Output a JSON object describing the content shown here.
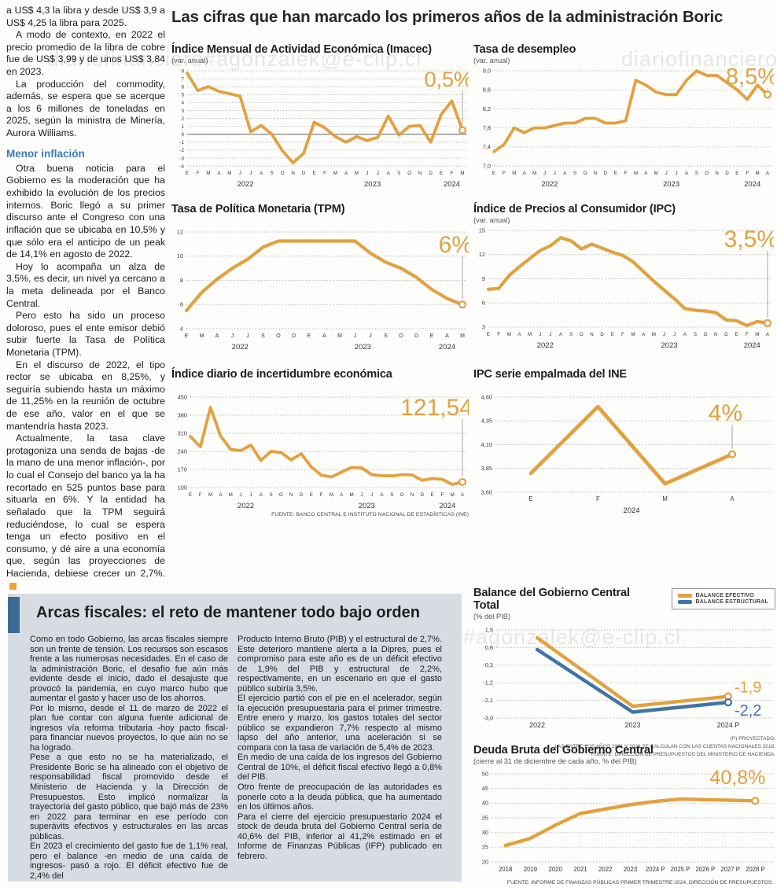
{
  "watermark": "diariofinanciero#agonzalek@e-clip.cl",
  "main_title": "Las cifras que han marcado los primeros años de la administración Boric",
  "left_column": {
    "paragraphs_before": [
      "a US$ 4,3 la libra y desde US$ 3,9 a US$ 4,25 la libra para 2025.",
      "A modo de contexto, en 2022 el precio promedio de la libra de cobre fue de US$ 3,99 y de unos US$ 3,84 en 2023.",
      "La producción del commodity, además, se espera que se acerque a los 6 millones de toneladas en 2025, según la ministra de Minería, Aurora Williams."
    ],
    "subhead": "Menor inflación",
    "paragraphs_after": [
      "Otra buena noticia para el Gobierno es la moderación que ha exhibido la evolución de los precios internos. Boric llegó a su primer discurso ante el Congreso con una inflación que se ubicaba en 10,5% y que sólo era el anticipo de un peak de 14,1% en agosto de 2022.",
      "Hoy lo acompaña un alza de 3,5%, es decir, un nivel ya cercano a la meta delineada por el Banco Central.",
      "Pero esto ha sido un proceso doloroso, pues el ente emisor debió subir fuerte la Tasa de Política Monetaria (TPM).",
      "En el discurso de 2022, el tipo rector se ubicaba en 8,25%, y seguiría subiendo hasta un máximo de 11,25% en la reunión de octubre de ese año, valor en el que se mantendría hasta 2023.",
      "Actualmente, la tasa clave protagoniza una senda de bajas -de la mano de una menor inflación-, por lo cual el Consejo del banco ya la ha recortado en 525 puntos base para situarla en 6%. Y la entidad ha señalado que la TPM seguirá reduciéndose, lo cual se espera tenga un efecto positivo en el consumo, y dé aire a una economía que, según las proyecciones de Hacienda, debiese crecer un 2,7%."
    ]
  },
  "bottom_box": {
    "title": "Arcas fiscales: el reto de mantener todo bajo orden",
    "col1": [
      "Como en todo Gobierno, las arcas fiscales siempre son un frente de tensión. Los recursos son escasos frente a las numerosas necesidades. En el caso de la administración Boric, el desafío fue aún más evidente desde el inicio, dado el desajuste que provocó la pandemia, en cuyo marco hubo que aumentar el gasto y hacer uso de los ahorros.",
      "Por lo mismo, desde el 11 de marzo de 2022 el plan fue contar con alguna fuente adicional de ingresos vía reforma tributaria -hoy pacto fiscal- para financiar nuevos proyectos, lo que aún no se ha logrado.",
      "Pese a que esto no se ha materializado, el Presidente Boric se ha alineado con el objetivo de responsabilidad fiscal promovido desde el Ministerio de Hacienda y la Dirección de Presupuestos. Esto implicó normalizar la trayectoria del gasto público, que bajó más de 23% en 2022 para terminar en ese período con superávits efectivos y estructurales en las arcas públicas.",
      "En 2023 el crecimiento del gasto fue de 1,1% real, pero el balance -en medio de una caída de ingresos-  pasó a rojo. El déficit efectivo fue de 2,4% del"
    ],
    "col2": [
      "Producto Interno Bruto (PIB) y el estructural de 2,7%. Este deterioro mantiene alerta a la Dipres, pues el compromiso para este año es de un déficit efectivo de 1,9% del PIB y estructural de 2,2%, respectivamente, en un escenario en que el gasto público subiría 3,5%.",
      "El ejercicio partió con el pie en el acelerador, según la ejecución presupuestaria para el primer trimestre. Entre enero y marzo, los gastos totales del sector público se expandieron 7,7% respecto al mismo lapso del año anterior, una aceleración si se compara con la tasa de variación de 5,4% de 2023.",
      "En medio de una caída de los ingresos del Gobierno Central de 10%, el déficit fiscal efectivo llegó a 0,8% del PIB.",
      "Otro frente de preocupación de las autoridades es ponerle coto a la deuda pública, que ha aumentado en los últimos años.",
      "Para el cierre del ejercicio presupuestario 2024 el stock de deuda bruta del Gobierno Central sería de 40,6% del PIB, inferior al 41,2% estimado en el Informe de Finanzas Públicas (IFP) publicado en febrero."
    ]
  },
  "colors": {
    "orange": "#e2a13f",
    "blue": "#3f74a6",
    "accent_bar_blue": "#3d6a92",
    "subhead_blue": "#3d7ab8",
    "gray_box_bg": "#d7dce2"
  },
  "chart_data": [
    {
      "id": "imacec",
      "type": "line",
      "title": "Índice Mensual de Actividad Económica (Imacec)",
      "subtitle": "(var. anual)",
      "x_labels": [
        "E",
        "F",
        "M",
        "A",
        "M",
        "J",
        "J",
        "A",
        "S",
        "O",
        "N",
        "D",
        "E",
        "F",
        "M",
        "A",
        "M",
        "J",
        "J",
        "A",
        "S",
        "O",
        "N",
        "D",
        "E",
        "F",
        "M"
      ],
      "year_groups": [
        {
          "label": "2022",
          "from": 0,
          "to": 11
        },
        {
          "label": "2023",
          "from": 12,
          "to": 23
        },
        {
          "label": "2024",
          "from": 24,
          "to": 26
        }
      ],
      "series": [
        {
          "name": "Imacec",
          "color": "#e2a13f",
          "values": [
            7.7,
            5.5,
            6.0,
            5.4,
            5.1,
            4.8,
            0.3,
            1.1,
            0.0,
            -2.1,
            -3.6,
            -2.4,
            1.5,
            0.8,
            -0.3,
            -1.0,
            -0.3,
            -0.8,
            -0.4,
            2.3,
            -0.1,
            1.0,
            1.1,
            -1.0,
            2.5,
            4.2,
            0.5
          ]
        }
      ],
      "ylim": [
        -4,
        8
      ],
      "ytick_vals": [
        8,
        7,
        6,
        5,
        4,
        3,
        2,
        1,
        0,
        -1,
        -2,
        -3,
        -4
      ],
      "ytick_labels": [
        "8",
        "7",
        "6",
        "5",
        "4",
        "3",
        "2",
        "1",
        "0",
        "-1",
        "-2",
        "-3",
        "-4"
      ],
      "zero_line": true,
      "value_label": "0,5%"
    },
    {
      "id": "desempleo",
      "type": "line",
      "title": "Tasa de desempleo",
      "subtitle": "(var. anual)",
      "x_labels": [
        "E",
        "F",
        "M",
        "A",
        "M",
        "J",
        "J",
        "A",
        "S",
        "O",
        "N",
        "D",
        "E",
        "F",
        "M",
        "A",
        "M",
        "J",
        "J",
        "A",
        "S",
        "O",
        "N",
        "D",
        "E",
        "F",
        "M",
        "A"
      ],
      "year_groups": [
        {
          "label": "2022",
          "from": 0,
          "to": 11
        },
        {
          "label": "2023",
          "from": 12,
          "to": 23
        },
        {
          "label": "2024",
          "from": 24,
          "to": 27
        }
      ],
      "series": [
        {
          "name": "Tasa de desempleo",
          "color": "#e2a13f",
          "values": [
            7.3,
            7.45,
            7.8,
            7.7,
            7.8,
            7.8,
            7.85,
            7.9,
            7.9,
            8.0,
            8.0,
            7.9,
            7.9,
            7.95,
            8.8,
            8.7,
            8.55,
            8.5,
            8.5,
            8.8,
            9.0,
            8.9,
            8.9,
            8.75,
            8.6,
            8.4,
            8.7,
            8.5
          ]
        }
      ],
      "ylim": [
        7.0,
        9.0
      ],
      "ytick_vals": [
        9.0,
        8.6,
        8.2,
        7.8,
        7.4,
        7.0
      ],
      "ytick_labels": [
        "9,0",
        "8,6",
        "8,2",
        "7,8",
        "7,4",
        "7,0"
      ],
      "value_label": "8,5%"
    },
    {
      "id": "tpm",
      "type": "line",
      "title": "Tasa de Política Monetaria (TPM)",
      "subtitle": "",
      "x_labels": [
        "E",
        "M",
        "A",
        "J",
        "J",
        "S",
        "O",
        "D",
        "E",
        "A",
        "M",
        "J",
        "J",
        "S",
        "O",
        "D",
        "E",
        "A",
        "M"
      ],
      "year_groups": [
        {
          "label": "2022",
          "from": 0,
          "to": 7
        },
        {
          "label": "2023",
          "from": 8,
          "to": 15
        },
        {
          "label": "2024",
          "from": 16,
          "to": 18
        }
      ],
      "series": [
        {
          "name": "TPM",
          "color": "#e2a13f",
          "values": [
            5.5,
            7.0,
            8.1,
            9.0,
            9.75,
            10.75,
            11.25,
            11.25,
            11.25,
            11.25,
            11.25,
            11.25,
            10.25,
            9.5,
            9.0,
            8.25,
            7.25,
            6.5,
            6.0
          ]
        }
      ],
      "ylim": [
        4,
        12
      ],
      "ytick_vals": [
        12,
        10,
        8,
        6,
        4
      ],
      "ytick_labels": [
        "12",
        "10",
        "8",
        "6",
        "4"
      ],
      "value_label": "6%"
    },
    {
      "id": "ipc",
      "type": "line",
      "title": "Índice de Precios al Consumidor (IPC)",
      "subtitle": "(var. anual)",
      "x_labels": [
        "E",
        "F",
        "M",
        "A",
        "M",
        "J",
        "J",
        "A",
        "S",
        "O",
        "N",
        "D",
        "E",
        "F",
        "M",
        "A",
        "M",
        "J",
        "J",
        "A",
        "S",
        "O",
        "N",
        "D",
        "E",
        "F",
        "M",
        "A"
      ],
      "year_groups": [
        {
          "label": "2022",
          "from": 0,
          "to": 11
        },
        {
          "label": "2023",
          "from": 12,
          "to": 23
        },
        {
          "label": "2024",
          "from": 24,
          "to": 27
        }
      ],
      "series": [
        {
          "name": "IPC",
          "color": "#e2a13f",
          "values": [
            7.7,
            7.8,
            9.4,
            10.5,
            11.5,
            12.5,
            13.1,
            14.1,
            13.7,
            12.7,
            13.3,
            12.8,
            12.3,
            11.9,
            11.1,
            9.9,
            8.7,
            7.6,
            6.5,
            5.3,
            5.1,
            5.0,
            4.8,
            3.9,
            3.8,
            3.2,
            3.7,
            3.5
          ]
        }
      ],
      "ylim": [
        3,
        15
      ],
      "ytick_vals": [
        15,
        12,
        9,
        6,
        3
      ],
      "ytick_labels": [
        "15",
        "12",
        "9",
        "6",
        "3"
      ],
      "value_label": "3,5%"
    },
    {
      "id": "incertidumbre",
      "type": "line",
      "title": "Índice diario de incertidumbre económica",
      "subtitle": "",
      "x_labels": [
        "E",
        "F",
        "M",
        "A",
        "M",
        "J",
        "J",
        "A",
        "S",
        "O",
        "N",
        "D",
        "E",
        "F",
        "M",
        "A",
        "M",
        "J",
        "J",
        "A",
        "S",
        "O",
        "N",
        "D",
        "E",
        "F",
        "M",
        "A"
      ],
      "year_groups": [
        {
          "label": "2022",
          "from": 0,
          "to": 11
        },
        {
          "label": "2023",
          "from": 12,
          "to": 23
        },
        {
          "label": "2024",
          "from": 24,
          "to": 27
        }
      ],
      "series": [
        {
          "name": "Incertidumbre económica",
          "color": "#e2a13f",
          "values": [
            298,
            258,
            410,
            300,
            248,
            243,
            264,
            205,
            240,
            236,
            207,
            231,
            180,
            148,
            141,
            160,
            178,
            176,
            150,
            146,
            145,
            150,
            149,
            128,
            135,
            132,
            112,
            121.54
          ]
        }
      ],
      "ylim": [
        100,
        450
      ],
      "ytick_vals": [
        450,
        380,
        310,
        240,
        170,
        100
      ],
      "ytick_labels": [
        "450",
        "380",
        "310",
        "240",
        "170",
        "100"
      ],
      "value_label": "121,54",
      "source": "FUENTE: BANCO CENTRAL E INSTITUTO NACIONAL DE ESTADÍSTICAS (INE)"
    },
    {
      "id": "ipc_empalmada",
      "type": "line",
      "title": "IPC serie empalmada del INE",
      "subtitle": "",
      "x_labels": [
        "E",
        "F",
        "M",
        "A"
      ],
      "year_groups": [
        {
          "label": "2024",
          "from": 0,
          "to": 3
        }
      ],
      "series": [
        {
          "name": "IPC serie empalmada",
          "color": "#e2a13f",
          "values": [
            3.8,
            4.5,
            3.69,
            4.0
          ]
        }
      ],
      "ylim": [
        3.6,
        4.6
      ],
      "ytick_vals": [
        4.6,
        4.35,
        4.1,
        3.85,
        3.6
      ],
      "ytick_labels": [
        "4,60",
        "4,35",
        "4,10",
        "3,85",
        "3,60"
      ],
      "value_label": "4%"
    },
    {
      "id": "balance",
      "type": "line",
      "title": "Balance del Gobierno Central Total",
      "subtitle": "(% del PIB)",
      "x_labels": [
        "2022",
        "2023",
        "2024 P"
      ],
      "series": [
        {
          "name": "BALANCE EFECTIVO",
          "color": "#e2a13f",
          "values": [
            1.1,
            -2.4,
            -1.9
          ]
        },
        {
          "name": "BALANCE ESTRUCTURAL",
          "color": "#3f74a6",
          "values": [
            0.5,
            -2.7,
            -2.2
          ]
        }
      ],
      "ylim": [
        -3.0,
        1.5
      ],
      "ytick_vals": [
        1.5,
        0.6,
        -0.3,
        -1.2,
        -2.1,
        -3.0
      ],
      "ytick_labels": [
        "1,5",
        "0,6",
        "-0,3",
        "-1,2",
        "-2,1",
        "-3,0"
      ],
      "end_labels": [
        {
          "text": "-1,9"
        },
        {
          "text": "-2,2"
        }
      ],
      "legend_position": "top-right",
      "footnotes": [
        "(P) PROYECTADO.",
        "LAS ENTRE LOS AÑOS 2021 Y 2023 SE CALCULAN  CON LAS CUENTAS NACIONALES 2018.",
        "FUENTE: DIRECCIÓN DE PRESUPUESTOS DEL MINISTERIO DE HACIENDA."
      ]
    },
    {
      "id": "deuda_bruta",
      "type": "line",
      "title": "Deuda Bruta del Gobierno Central",
      "subtitle": "(cierre al 31 de diciembre de cada año, % del PIB)",
      "x_labels": [
        "2018",
        "2019",
        "2020",
        "2021",
        "2022",
        "2023",
        "2024 P",
        "2025 P",
        "2026 P",
        "2027 P",
        "2028 P"
      ],
      "series": [
        {
          "name": "Deuda bruta",
          "color": "#e2a13f",
          "values": [
            25.6,
            28.0,
            32.5,
            36.5,
            38.0,
            39.5,
            40.6,
            41.4,
            41.2,
            41.0,
            40.8
          ]
        }
      ],
      "ylim": [
        20,
        50
      ],
      "ytick_vals": [
        50,
        45,
        40,
        35,
        30,
        25,
        20
      ],
      "ytick_labels": [
        "50",
        "45",
        "40",
        "35",
        "30",
        "25",
        "20"
      ],
      "value_label": "40,8%",
      "source": "FUENTE: INFORME DE FINANZAS PÚBLICAS PRIMER TRIMESTRE 2024, DIRECCIÓN DE PRESUPUESTOS."
    }
  ]
}
